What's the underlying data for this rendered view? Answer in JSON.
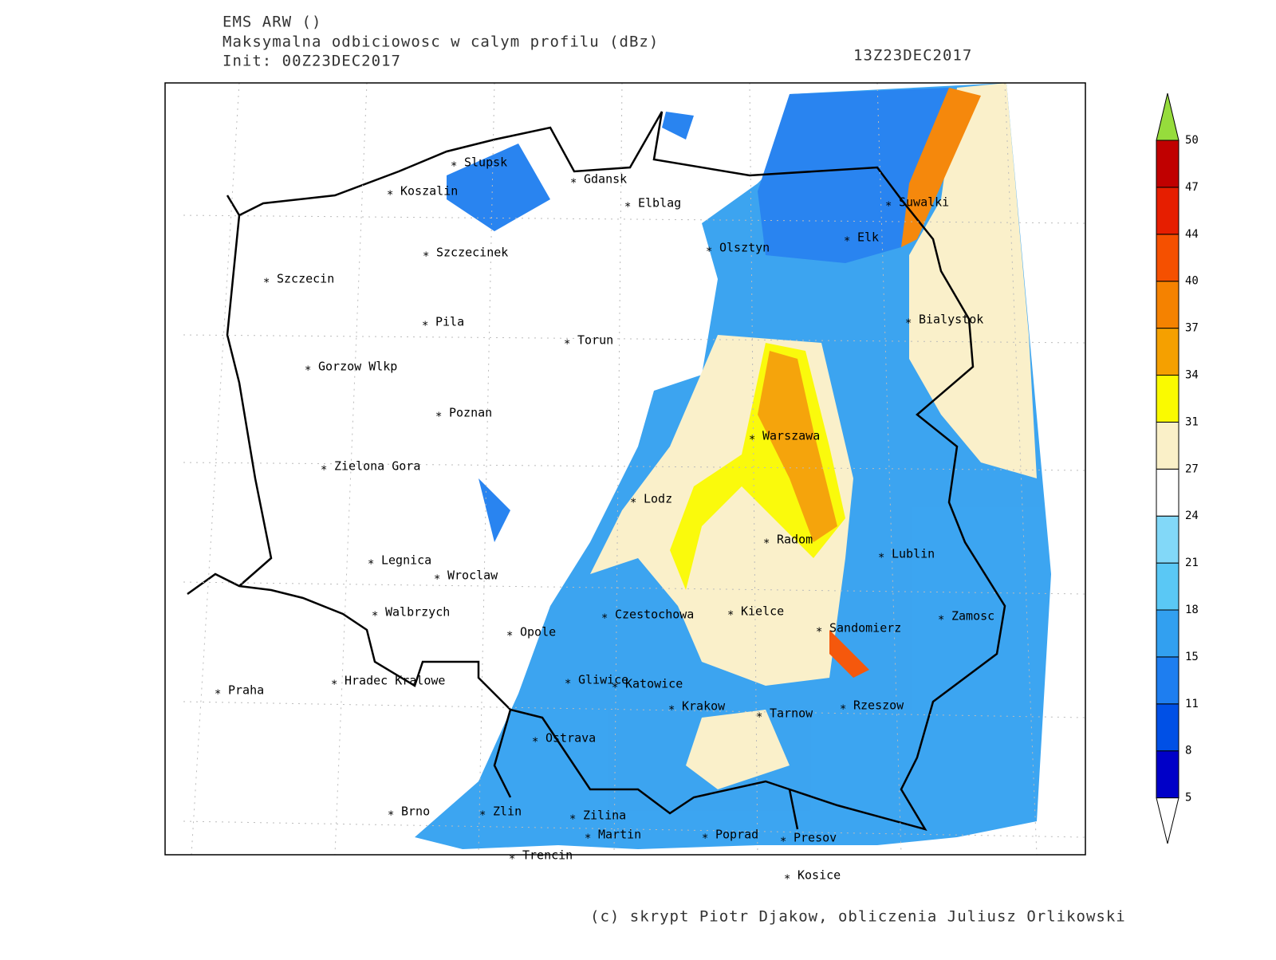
{
  "header": {
    "model": "EMS ARW ()",
    "field": "Maksymalna odbiciowosc w calym profilu (dBz)",
    "init": "Init: 00Z23DEC2017",
    "valid": "13Z23DEC2017"
  },
  "cities": [
    "Slupsk",
    "Koszalin",
    "Gdansk",
    "Elblag",
    "Szczecinek",
    "Szczecin",
    "Olsztyn",
    "Elk",
    "Suwalki",
    "Bialystok",
    "Pila",
    "Torun",
    "Gorzow Wlkp",
    "Poznan",
    "Warszawa",
    "Zielona Gora",
    "Lodz",
    "Radom",
    "Lublin",
    "Legnica",
    "Wroclaw",
    "Walbrzych",
    "Czestochowa",
    "Kielce",
    "Zamosc",
    "Opole",
    "Sandomierz",
    "Hradec Kralowe",
    "Gliwice",
    "Katowice",
    "Praha",
    "Krakow",
    "Tarnow",
    "Rzeszow",
    "Ostrava",
    "Brno",
    "Zlin",
    "Zilina",
    "Martin",
    "Poprad",
    "Presov",
    "Trencin",
    "Kosice"
  ],
  "legend": {
    "ticks": [
      5,
      8,
      11,
      15,
      18,
      21,
      24,
      27,
      31,
      34,
      37,
      40,
      44,
      47,
      50
    ],
    "colors": [
      "#0000c8",
      "#0050e6",
      "#1e7ef0",
      "#32a0f0",
      "#5ac8f5",
      "#82d8f8",
      "#ffffff",
      "#faf0c8",
      "#fafa00",
      "#f5a000",
      "#f58200",
      "#f55000",
      "#e61e00",
      "#c00000"
    ],
    "over_color": "#96dc3c",
    "under_color": "#ffffff"
  },
  "footer": "(c) skrypt Piotr Djakow, obliczenia Juliusz Orlikowski"
}
